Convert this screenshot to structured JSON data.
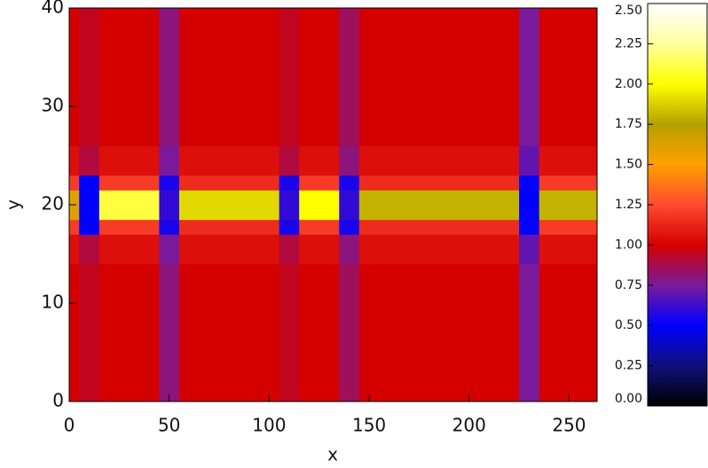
{
  "chart_data": {
    "type": "heatmap",
    "xlabel": "x",
    "ylabel": "y",
    "xlim": [
      0,
      264
    ],
    "ylim": [
      0,
      40
    ],
    "xticks": [
      0,
      50,
      100,
      150,
      200,
      250
    ],
    "yticks": [
      0,
      10,
      20,
      30,
      40
    ],
    "x_edges": [
      0,
      5,
      15,
      45,
      55,
      105,
      115,
      135,
      145,
      225,
      235,
      264
    ],
    "y_edges": [
      0,
      14,
      17,
      18.5,
      21.5,
      23,
      26,
      40
    ],
    "values": [
      [
        1.0,
        0.95,
        1.0,
        0.8,
        1.0,
        0.95,
        1.0,
        0.85,
        1.0,
        0.75,
        1.0
      ],
      [
        1.05,
        0.9,
        1.05,
        0.75,
        1.05,
        0.9,
        1.05,
        0.8,
        1.05,
        0.7,
        1.05
      ],
      [
        1.2,
        0.5,
        1.2,
        0.55,
        1.15,
        0.55,
        1.2,
        0.55,
        1.15,
        0.5,
        1.2
      ],
      [
        1.6,
        0.5,
        2.1,
        0.6,
        1.9,
        0.6,
        2.0,
        0.6,
        1.8,
        0.5,
        1.8
      ],
      [
        1.2,
        0.5,
        1.2,
        0.55,
        1.15,
        0.55,
        1.2,
        0.55,
        1.15,
        0.5,
        1.2
      ],
      [
        1.05,
        0.9,
        1.05,
        0.75,
        1.05,
        0.9,
        1.05,
        0.8,
        1.05,
        0.7,
        1.05
      ],
      [
        1.0,
        0.95,
        1.0,
        0.8,
        1.0,
        0.95,
        1.0,
        0.85,
        1.0,
        0.75,
        1.0
      ]
    ],
    "zlim": [
      0,
      2.5
    ],
    "zticks": [
      {
        "value": 0,
        "label": "0.00"
      },
      {
        "value": 0.25,
        "label": "0.25"
      },
      {
        "value": 0.5,
        "label": "0.50"
      },
      {
        "value": 0.75,
        "label": "0.75"
      },
      {
        "value": 1,
        "label": "1.00"
      },
      {
        "value": 1.25,
        "label": "1.25"
      },
      {
        "value": 1.5,
        "label": "1.50"
      },
      {
        "value": 1.75,
        "label": "1.75"
      },
      {
        "value": 2,
        "label": "2.00"
      },
      {
        "value": 2.25,
        "label": "2.25"
      },
      {
        "value": 2.5,
        "label": "2.50"
      }
    ],
    "colorscale": [
      [
        0,
        "#000000"
      ],
      [
        0.25,
        "#10107a"
      ],
      [
        0.5,
        "#0000ff"
      ],
      [
        0.75,
        "#7a1a9a"
      ],
      [
        1,
        "#d40000"
      ],
      [
        1.25,
        "#ff4a30"
      ],
      [
        1.5,
        "#ffa000"
      ],
      [
        1.75,
        "#b4a000"
      ],
      [
        2,
        "#ffff00"
      ],
      [
        2.25,
        "#ffffa0"
      ],
      [
        2.5,
        "#ffffff"
      ]
    ]
  }
}
